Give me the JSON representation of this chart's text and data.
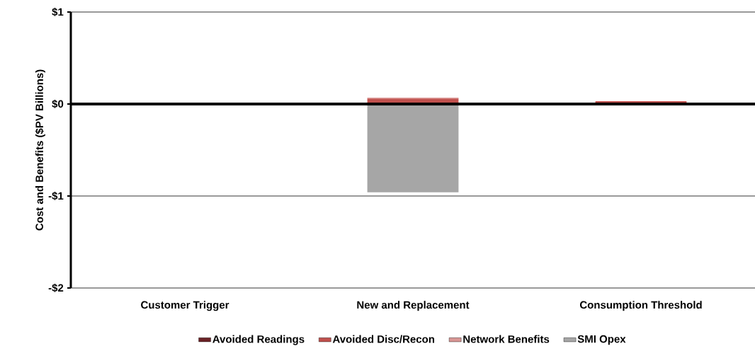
{
  "chart_data": {
    "type": "bar",
    "stacked": true,
    "ylabel": "Cost and Benefits ($PV Billions)",
    "categories": [
      "Customer Trigger",
      "New and Replacement",
      "Consumption Threshold"
    ],
    "series": [
      {
        "name": "Avoided Readings",
        "color": "#6b2226",
        "values": [
          0,
          0,
          0.01
        ]
      },
      {
        "name": "Avoided Disc/Recon",
        "color": "#c0504d",
        "values": [
          0,
          0.06,
          0.02
        ]
      },
      {
        "name": "Network Benefits",
        "color": "#d99694",
        "values": [
          0,
          0.01,
          0
        ]
      },
      {
        "name": "SMI Opex",
        "color": "#a6a6a6",
        "values": [
          0,
          -0.96,
          0
        ]
      }
    ],
    "ylim": [
      -2,
      1
    ],
    "yticks": [
      {
        "value": -2,
        "label": "-$2"
      },
      {
        "value": -1,
        "label": "-$1"
      },
      {
        "value": 0,
        "label": "$0"
      },
      {
        "value": 1,
        "label": "$1"
      }
    ],
    "grid": "y",
    "legend": "bottom"
  }
}
